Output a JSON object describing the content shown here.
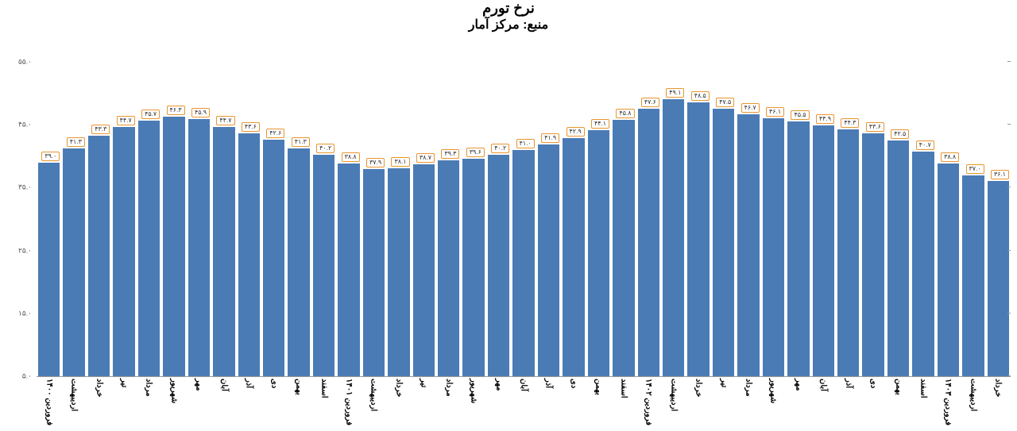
{
  "chart": {
    "type": "bar",
    "title": "نرخ تورم",
    "subtitle": "منبع: مرکز آمار",
    "title_fontsize": 18,
    "subtitle_fontsize": 16,
    "background_color": "#ffffff",
    "bar_color": "#4a7bb5",
    "label_border_color": "#e8952f",
    "label_bg_color": "#ffffff",
    "axis_color": "#999999",
    "text_color": "#333333",
    "ylim": [
      5.0,
      55.0
    ],
    "yticks": [
      5.0,
      15.0,
      25.0,
      35.0,
      45.0,
      55.0
    ],
    "ytick_labels": [
      "۵.۰",
      "۱۵.۰",
      "۲۵.۰",
      "۳۵.۰",
      "۴۵.۰",
      "۵۵.۰"
    ],
    "categories": [
      "فروردین ۱۴۰۰",
      "اردیبهشت",
      "خرداد",
      "تیر",
      "مرداد",
      "شهریور",
      "مهر",
      "آبان",
      "آذر",
      "دی",
      "بهمن",
      "اسفند",
      "فروردین ۱۴۰۱",
      "اردیبهشت",
      "خرداد",
      "تیر",
      "مرداد",
      "شهریور",
      "مهر",
      "آبان",
      "آذر",
      "دی",
      "بهمن",
      "اسفند",
      "فروردین ۱۴۰۲",
      "اردیبهشت",
      "خرداد",
      "تیر",
      "مرداد",
      "شهریور",
      "مهر",
      "آبان",
      "آذر",
      "دی",
      "بهمن",
      "اسفند",
      "فروردین ۱۴۰۳",
      "اردیبهشت",
      "خرداد"
    ],
    "values": [
      39.0,
      41.3,
      43.3,
      44.7,
      45.7,
      46.3,
      45.9,
      44.7,
      43.6,
      42.6,
      41.3,
      40.2,
      38.8,
      37.9,
      38.1,
      38.7,
      39.3,
      39.6,
      40.2,
      41.0,
      41.9,
      42.9,
      44.1,
      45.8,
      47.6,
      49.1,
      48.5,
      47.5,
      46.7,
      46.1,
      45.5,
      44.9,
      44.3,
      43.6,
      42.5,
      40.7,
      38.8,
      37.0,
      36.1
    ],
    "value_labels": [
      "۳۹.۰",
      "۴۱.۳",
      "۴۳.۳",
      "۴۴.۷",
      "۴۵.۷",
      "۴۶.۳",
      "۴۵.۹",
      "۴۴.۷",
      "۴۳.۶",
      "۴۲.۶",
      "۴۱.۳",
      "۴۰.۲",
      "۳۸.۸",
      "۳۷.۹",
      "۳۸.۱",
      "۳۸.۷",
      "۳۹.۳",
      "۳۹.۶",
      "۴۰.۲",
      "۴۱.۰",
      "۴۱.۹",
      "۴۲.۹",
      "۴۴.۱",
      "۴۵.۸",
      "۴۷.۶",
      "۴۹.۱",
      "۴۸.۵",
      "۴۷.۵",
      "۴۶.۷",
      "۴۶.۱",
      "۴۵.۵",
      "۴۴.۹",
      "۴۴.۳",
      "۴۳.۶",
      "۴۲.۵",
      "۴۰.۷",
      "۳۸.۸",
      "۳۷.۰",
      "۳۶.۱"
    ]
  }
}
